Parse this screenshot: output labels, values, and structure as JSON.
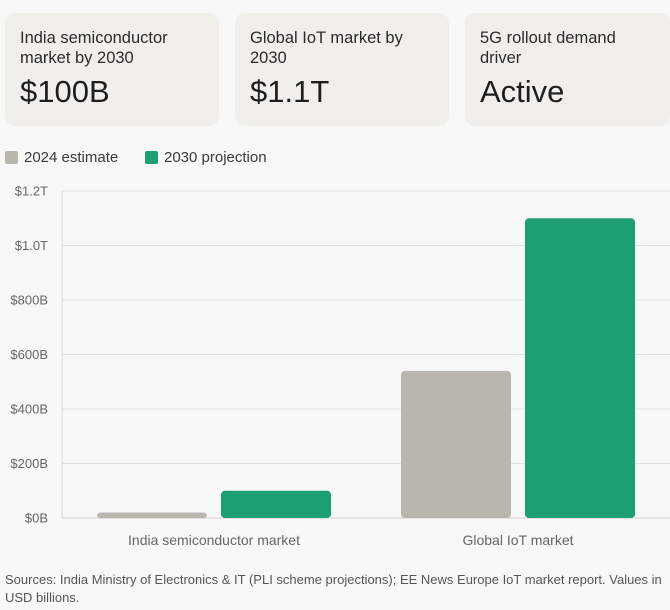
{
  "cards": [
    {
      "label": "India semiconductor market by 2030",
      "value": "$100B"
    },
    {
      "label": "Global IoT market by 2030",
      "value": "$1.1T"
    },
    {
      "label": "5G rollout demand driver",
      "value": "Active"
    }
  ],
  "chart_data": {
    "type": "bar",
    "categories": [
      "India semiconductor market",
      "Global IoT market"
    ],
    "series": [
      {
        "name": "2024 estimate",
        "color": "#b9b6ad",
        "values": [
          20,
          540
        ]
      },
      {
        "name": "2030 projection",
        "color": "#1e9e73",
        "values": [
          100,
          1100
        ]
      }
    ],
    "ylim": [
      0,
      1200
    ],
    "yticks": [
      0,
      200,
      400,
      600,
      800,
      1000,
      1200
    ],
    "ytick_labels": [
      "$0B",
      "$200B",
      "$400B",
      "$600B",
      "$800B",
      "$1.0T",
      "$1.2T"
    ],
    "grid": true,
    "legend_position": "top-left"
  },
  "source": "Sources: India Ministry of Electronics & IT (PLI scheme projections); EE News Europe IoT market report. Values in USD billions."
}
